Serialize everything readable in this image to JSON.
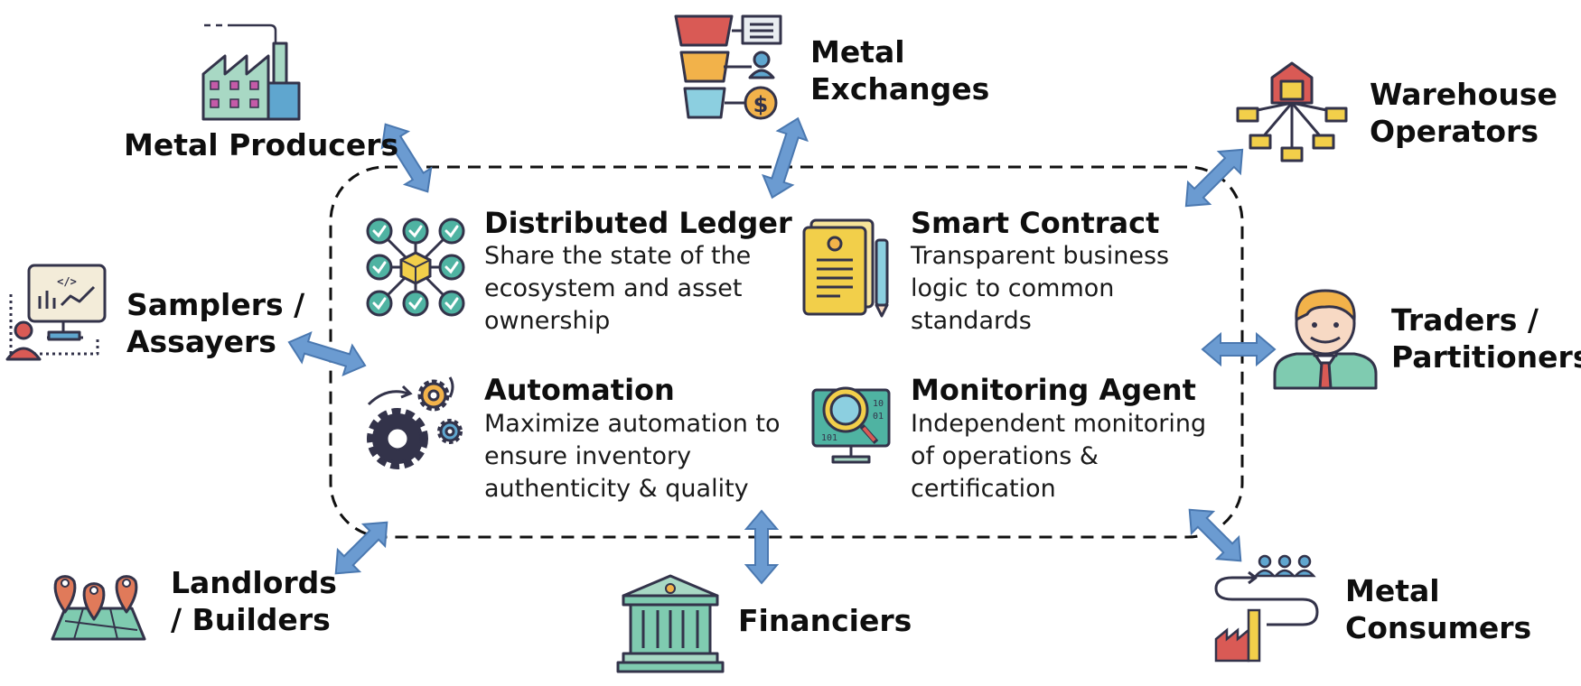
{
  "participants": {
    "metal_producers": {
      "label_1": "Metal Producers"
    },
    "metal_exchanges": {
      "label_1": "Metal",
      "label_2": "Exchanges"
    },
    "warehouse_operators": {
      "label_1": "Warehouse",
      "label_2": "Operators"
    },
    "samplers_assayers": {
      "label_1": "Samplers /",
      "label_2": "Assayers"
    },
    "traders_partitioners": {
      "label_1": "Traders /",
      "label_2": "Partitioners"
    },
    "landlords_builders": {
      "label_1": "Landlords",
      "label_2": "/ Builders"
    },
    "financiers": {
      "label_1": "Financiers"
    },
    "metal_consumers": {
      "label_1": "Metal",
      "label_2": "Consumers"
    }
  },
  "features": {
    "distributed_ledger": {
      "title": "Distributed Ledger",
      "desc_1": "Share the state of the",
      "desc_2": "ecosystem and asset",
      "desc_3": "ownership"
    },
    "smart_contract": {
      "title": "Smart Contract",
      "desc_1": "Transparent business",
      "desc_2": "logic to common",
      "desc_3": "standards"
    },
    "automation": {
      "title": "Automation",
      "desc_1": "Maximize automation to",
      "desc_2": "ensure inventory",
      "desc_3": "authenticity & quality"
    },
    "monitoring_agent": {
      "title": "Monitoring Agent",
      "desc_1": "Independent monitoring",
      "desc_2": "of operations &",
      "desc_3": "certification"
    }
  },
  "colors": {
    "arrow_fill": "#6b9bd1",
    "arrow_stroke": "#4a78b0",
    "icon_outline": "#33334a",
    "teal": "#4fb3a2",
    "mint": "#a8d8c4",
    "red": "#d95a55",
    "orange": "#e8a33c",
    "yellow": "#f2cf4a",
    "blue_icon": "#5fa6cf"
  }
}
